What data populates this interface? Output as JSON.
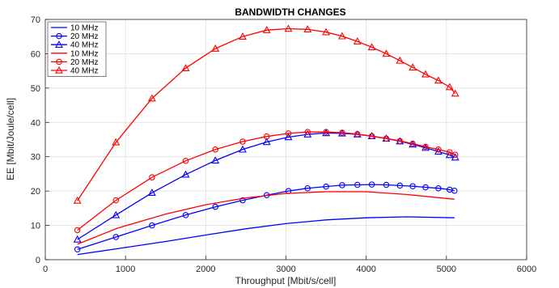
{
  "chart_data": {
    "type": "line",
    "title": "BANDWIDTH CHANGES",
    "xlabel": "Throughput [Mbit/s/cell]",
    "ylabel": "EE [Mbit/Joule/cell]",
    "xlim": [
      0,
      6000
    ],
    "ylim": [
      0,
      70
    ],
    "xticks": [
      0,
      1000,
      2000,
      3000,
      4000,
      5000,
      6000
    ],
    "yticks": [
      0,
      10,
      20,
      30,
      40,
      50,
      60,
      70
    ],
    "grid": true,
    "legend_position": "top-left",
    "series": [
      {
        "name": "10 MHz",
        "color": "#0000ff",
        "marker": "none",
        "x": [
          400,
          900,
          1500,
          2000,
          2500,
          3000,
          3500,
          4000,
          4500,
          5100
        ],
        "y": [
          1.5,
          3.2,
          5.3,
          7.2,
          9.0,
          10.5,
          11.6,
          12.2,
          12.5,
          12.2
        ]
      },
      {
        "name": "20 MHz",
        "color": "#0000ff",
        "marker": "circle",
        "x": [
          400,
          880,
          1330,
          1750,
          2120,
          2460,
          2760,
          3030,
          3270,
          3500,
          3700,
          3890,
          4070,
          4250,
          4420,
          4580,
          4740,
          4900,
          5040,
          5100
        ],
        "y": [
          3.0,
          6.6,
          10.0,
          13.0,
          15.4,
          17.3,
          18.8,
          20.0,
          20.8,
          21.3,
          21.7,
          21.8,
          21.9,
          21.8,
          21.6,
          21.4,
          21.1,
          20.8,
          20.4,
          20.1
        ]
      },
      {
        "name": "40 MHz",
        "color": "#0000ff",
        "marker": "triangle",
        "x": [
          400,
          880,
          1330,
          1750,
          2120,
          2460,
          2760,
          3030,
          3270,
          3500,
          3700,
          3890,
          4070,
          4250,
          4420,
          4580,
          4740,
          4900,
          5040,
          5110
        ],
        "y": [
          5.9,
          13.0,
          19.5,
          24.8,
          28.9,
          32.1,
          34.3,
          35.7,
          36.5,
          36.9,
          36.8,
          36.5,
          36.0,
          35.3,
          34.5,
          33.6,
          32.6,
          31.5,
          30.5,
          29.8
        ]
      },
      {
        "name": "10 MHz",
        "color": "#ff0000",
        "marker": "none",
        "x": [
          400,
          900,
          1500,
          2000,
          2500,
          3000,
          3500,
          4000,
          4500,
          5100
        ],
        "y": [
          4.5,
          9.2,
          13.3,
          16.0,
          18.0,
          19.3,
          19.8,
          19.8,
          19.0,
          17.6
        ]
      },
      {
        "name": "20 MHz",
        "color": "#ff0000",
        "marker": "circle",
        "x": [
          400,
          880,
          1330,
          1750,
          2120,
          2460,
          2760,
          3030,
          3270,
          3500,
          3700,
          3890,
          4070,
          4250,
          4420,
          4580,
          4740,
          4900,
          5040,
          5110
        ],
        "y": [
          8.6,
          17.3,
          24.0,
          28.8,
          32.1,
          34.4,
          35.9,
          36.8,
          37.2,
          37.2,
          37.0,
          36.6,
          36.0,
          35.3,
          34.6,
          33.8,
          32.9,
          32.1,
          31.3,
          30.6
        ]
      },
      {
        "name": "40 MHz",
        "color": "#ff0000",
        "marker": "triangle",
        "x": [
          400,
          880,
          1330,
          1750,
          2120,
          2460,
          2760,
          3030,
          3270,
          3500,
          3700,
          3890,
          4070,
          4250,
          4420,
          4580,
          4740,
          4900,
          5040,
          5110
        ],
        "y": [
          17.2,
          34.2,
          47.0,
          55.8,
          61.5,
          65.0,
          66.9,
          67.3,
          67.1,
          66.3,
          65.1,
          63.6,
          61.9,
          60.0,
          58.0,
          56.0,
          54.0,
          52.2,
          50.3,
          48.4
        ]
      }
    ]
  }
}
